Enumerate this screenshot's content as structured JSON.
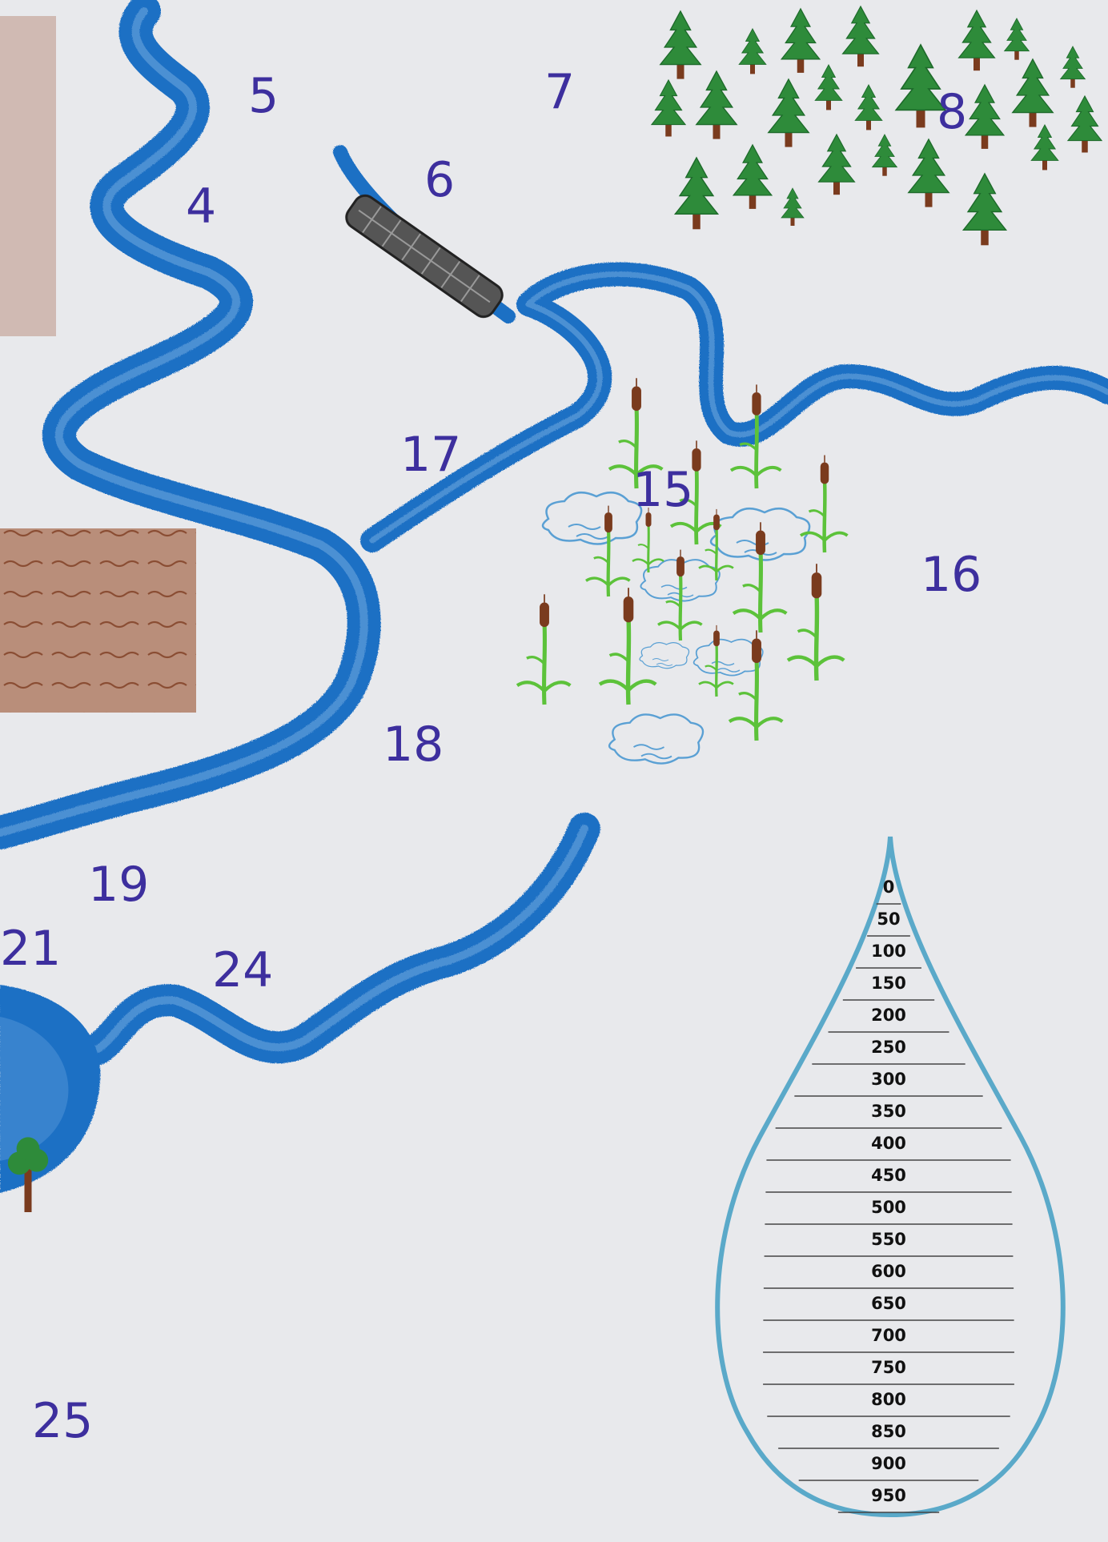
{
  "map": {
    "zone_labels": [
      {
        "id": "zone-4",
        "text": "4"
      },
      {
        "id": "zone-5",
        "text": "5"
      },
      {
        "id": "zone-6",
        "text": "6"
      },
      {
        "id": "zone-7",
        "text": "7"
      },
      {
        "id": "zone-8",
        "text": "8"
      },
      {
        "id": "zone-15",
        "text": "15"
      },
      {
        "id": "zone-16",
        "text": "16"
      },
      {
        "id": "zone-17",
        "text": "17"
      },
      {
        "id": "zone-18",
        "text": "18"
      },
      {
        "id": "zone-19",
        "text": "19"
      },
      {
        "id": "zone-21",
        "text": "21"
      },
      {
        "id": "zone-24",
        "text": "24"
      },
      {
        "id": "zone-25",
        "text": "25"
      }
    ],
    "features": {
      "rivers": "blue",
      "forest": "conifer-tree-icons",
      "marsh": "cattail-reed-icons",
      "fields": "brown-ploughed-fields",
      "dam": "stone-dam"
    },
    "colors": {
      "paper": "#e8e9ec",
      "water": "#1f6fc4",
      "water_light": "#6aa6de",
      "tree_green": "#2e8b3a",
      "trunk": "#7a3b1e",
      "field": "#b98e7a",
      "label": "#3d2f9e"
    }
  },
  "gauge": {
    "ticks": [
      "0",
      "50",
      "100",
      "150",
      "200",
      "250",
      "300",
      "350",
      "400",
      "450",
      "500",
      "550",
      "600",
      "650",
      "700",
      "750",
      "800",
      "850",
      "900",
      "950"
    ],
    "outline_color": "#5aa9c9"
  }
}
